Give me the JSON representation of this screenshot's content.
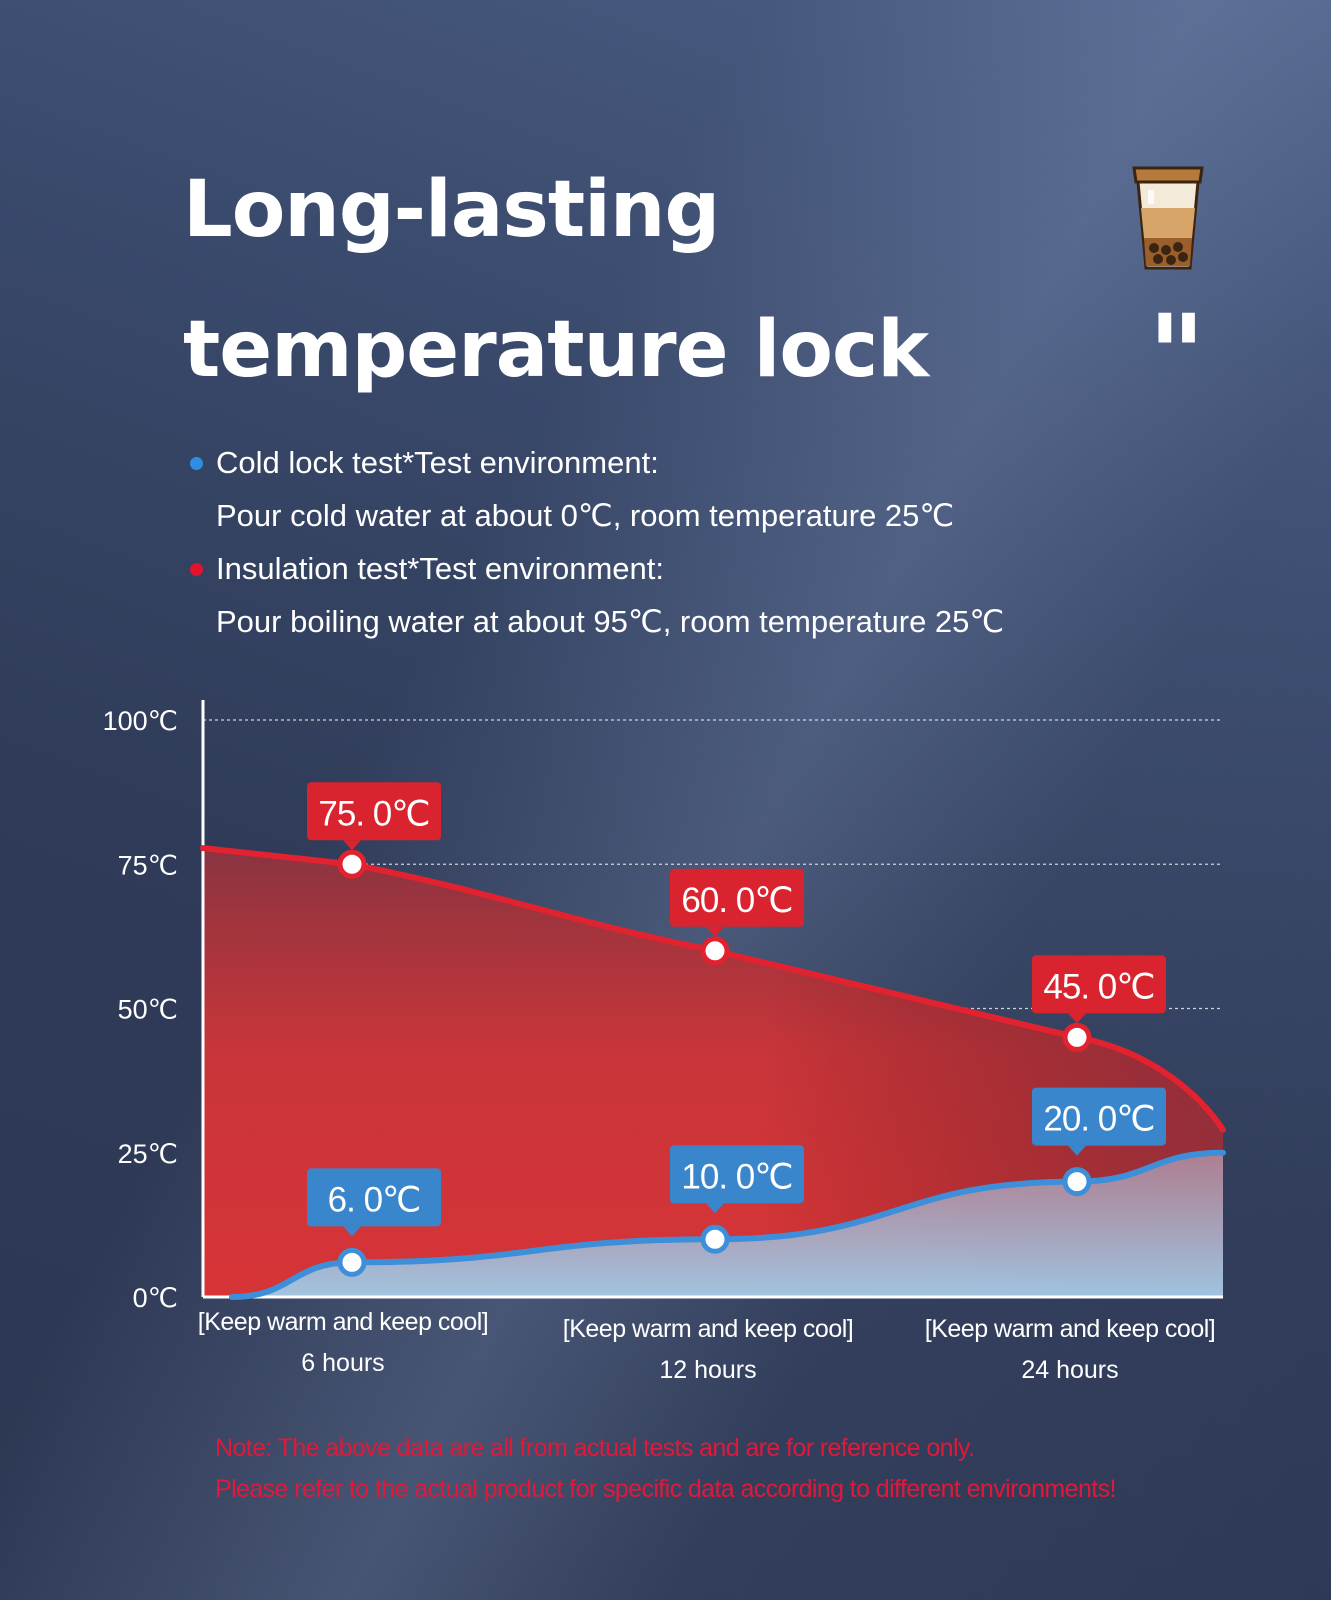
{
  "header": {
    "title_line1": "Long-lasting",
    "title_line2": "temperature lock",
    "quote_mark": "\""
  },
  "legend": [
    {
      "bullet_color": "#2e8fe0",
      "text": "Cold lock test*Test environment:"
    },
    {
      "bullet_color": null,
      "text": "Pour cold water at about 0℃, room temperature 25℃"
    },
    {
      "bullet_color": "#e3122d",
      "text": "Insulation test*Test environment:"
    },
    {
      "bullet_color": null,
      "text": "Pour boiling water at about 95℃, room temperature 25℃"
    }
  ],
  "chart_data": {
    "type": "area",
    "y_ticks": [
      "100℃",
      "75℃",
      "50℃",
      "25℃",
      "0℃"
    ],
    "ylim": [
      0,
      100
    ],
    "grid": true,
    "categories": [
      {
        "line1": "[Keep warm and keep cool]",
        "line2": "6 hours"
      },
      {
        "line1": "[Keep warm and keep cool]",
        "line2": "12 hours"
      },
      {
        "line1": "[Keep warm and keep cool]",
        "line2": "24 hours"
      }
    ],
    "series": [
      {
        "key": "insulation",
        "color": "#e3222f",
        "values": [
          75.0,
          60.0,
          45.0
        ],
        "labels": [
          "75. 0℃",
          "60. 0℃",
          "45. 0℃"
        ]
      },
      {
        "key": "cold_lock",
        "color": "#3d8fda",
        "values": [
          6.0,
          10.0,
          20.0
        ],
        "labels": [
          "6. 0℃",
          "10. 0℃",
          "20. 0℃"
        ]
      }
    ]
  },
  "note": {
    "line1": "Note: The above data are all from actual tests and are for reference only.",
    "line2": "Please refer to the actual product for specific data according to different environments!"
  }
}
